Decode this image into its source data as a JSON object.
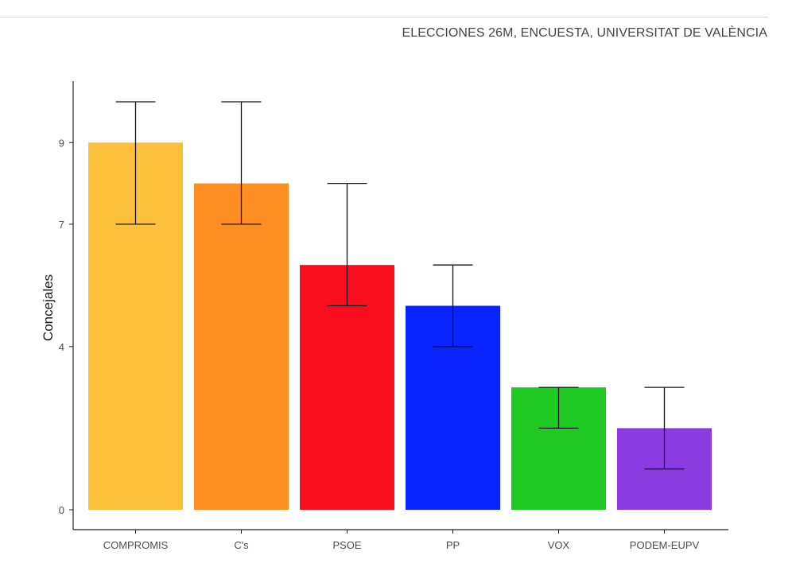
{
  "header": {
    "caption": "ELECCIONES 26M, ENCUESTA, UNIVERSITAT DE VALÈNCIA"
  },
  "chart_data": {
    "type": "bar",
    "title": "",
    "xlabel": "",
    "ylabel": "Concejales",
    "categories": [
      "COMPROMIS",
      "C's",
      "PSOE",
      "PP",
      "VOX",
      "PODEM-EUPV"
    ],
    "values": [
      9,
      8,
      6,
      5,
      3,
      2
    ],
    "error_low": [
      7,
      7,
      5,
      4,
      2,
      1
    ],
    "error_high": [
      10,
      10,
      8,
      6,
      3,
      3
    ],
    "colors": [
      "#FCC03A",
      "#FC8E22",
      "#F90D1F",
      "#0A24FF",
      "#1FCB23",
      "#8A3ADF"
    ],
    "ylim": [
      0,
      10.5
    ],
    "yticks": [
      0,
      4,
      7,
      9
    ],
    "grid": false,
    "legend": "none"
  }
}
